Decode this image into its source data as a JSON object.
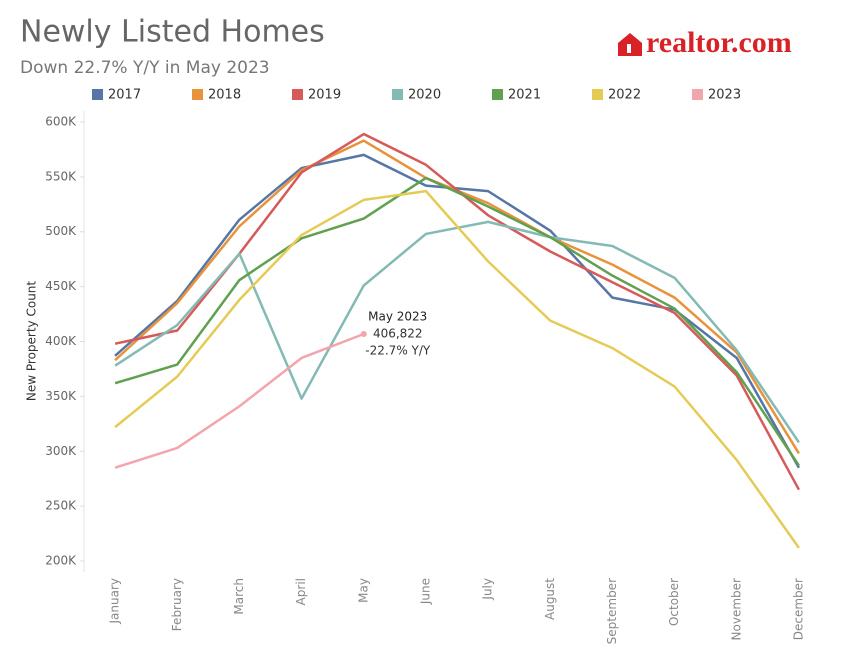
{
  "chart_data": {
    "type": "line",
    "title": "Newly Listed Homes",
    "subtitle": "Down 22.7% Y/Y in May 2023",
    "logo": "realtor.com",
    "y_label": "New Property Count",
    "categories": [
      "January",
      "February",
      "March",
      "April",
      "May",
      "June",
      "July",
      "August",
      "September",
      "October",
      "November",
      "December"
    ],
    "series": [
      {
        "name": "2017",
        "color": "#5576a6",
        "values": [
          387000,
          437000,
          511000,
          558000,
          570000,
          542000,
          537000,
          501000,
          440000,
          429000,
          385000,
          285000
        ]
      },
      {
        "name": "2018",
        "color": "#e8923c",
        "values": [
          383000,
          435000,
          505000,
          556000,
          583000,
          549000,
          526000,
          495000,
          470000,
          440000,
          390000,
          298000
        ]
      },
      {
        "name": "2019",
        "color": "#d65a5a",
        "values": [
          398000,
          410000,
          480000,
          554000,
          589000,
          561000,
          515000,
          482000,
          454000,
          426000,
          369000,
          265000
        ]
      },
      {
        "name": "2020",
        "color": "#84bab4",
        "values": [
          378000,
          415000,
          480000,
          348000,
          451000,
          498000,
          509000,
          495000,
          487000,
          458000,
          392000,
          308000
        ]
      },
      {
        "name": "2021",
        "color": "#5fa14f",
        "values": [
          362000,
          379000,
          456000,
          494000,
          512000,
          549000,
          523000,
          495000,
          460000,
          430000,
          372000,
          287000
        ]
      },
      {
        "name": "2022",
        "color": "#e5cb55",
        "values": [
          322000,
          368000,
          438000,
          497000,
          529000,
          537000,
          473000,
          419000,
          394000,
          359000,
          292000,
          212000
        ]
      },
      {
        "name": "2023",
        "color": "#f3a5ae",
        "values": [
          285000,
          303000,
          341000,
          385000,
          406822,
          null,
          null,
          null,
          null,
          null,
          null,
          null
        ],
        "value_labels": [
          null,
          null,
          null,
          null,
          "406,822",
          null,
          null,
          null,
          null,
          null,
          null,
          null
        ]
      }
    ],
    "annotation": {
      "title": "May 2023",
      "change": "-22.7% Y/Y"
    },
    "ylim": [
      190000,
      610000
    ],
    "yticks": [
      {
        "value": 200000,
        "label": "200K"
      },
      {
        "value": 250000,
        "label": "250K"
      },
      {
        "value": 300000,
        "label": "300K"
      },
      {
        "value": 350000,
        "label": "350K"
      },
      {
        "value": 400000,
        "label": "400K"
      },
      {
        "value": 450000,
        "label": "450K"
      },
      {
        "value": 500000,
        "label": "500K"
      },
      {
        "value": 550000,
        "label": "550K"
      },
      {
        "value": 600000,
        "label": "600K"
      }
    ],
    "grid": false
  }
}
